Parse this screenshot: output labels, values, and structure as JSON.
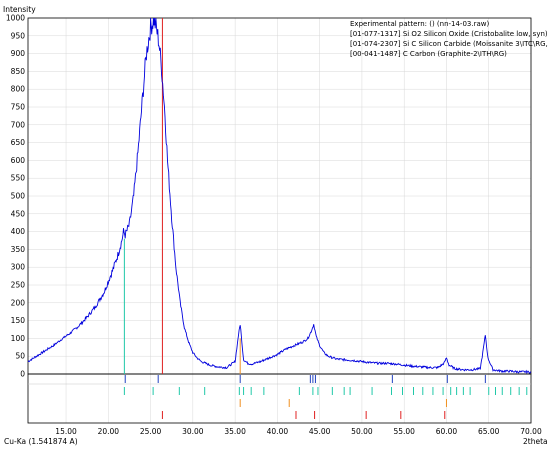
{
  "chart_data": {
    "type": "line",
    "ylabel": "Intensity",
    "xlabel": "2theta",
    "wavelength_label": "Cu-Ka (1.541874 A)",
    "xlim": [
      10.5,
      70.0
    ],
    "ylim": [
      0,
      1000
    ],
    "x_ticks": [
      15.0,
      20.0,
      25.0,
      30.0,
      35.0,
      40.0,
      45.0,
      50.0,
      55.0,
      60.0,
      65.0,
      70.0
    ],
    "x_tick_labels": [
      "15.00",
      "20.00",
      "25.00",
      "30.00",
      "35.00",
      "40.00",
      "45.00",
      "50.00",
      "55.00",
      "60.00",
      "65.00",
      "70.00"
    ],
    "y_ticks": [
      0,
      50,
      100,
      150,
      200,
      250,
      300,
      350,
      400,
      450,
      500,
      550,
      600,
      650,
      700,
      750,
      800,
      850,
      900,
      950,
      1000
    ],
    "y_tick_labels": [
      "0",
      "50",
      "100",
      "150",
      "200",
      "250",
      "300",
      "350",
      "400",
      "450",
      "500",
      "550",
      "600",
      "650",
      "700",
      "750",
      "800",
      "850",
      "900",
      "950",
      "1000"
    ],
    "legend_position": "top-right",
    "series": [
      {
        "name": "Experimental pattern:  () (nn-14-03.raw)",
        "color": "#0000dd",
        "x": [
          10.5,
          11.5,
          12.5,
          13.5,
          14.5,
          15.5,
          16.5,
          17.5,
          18.5,
          19.5,
          20.5,
          21.2,
          21.6,
          21.8,
          22.0,
          22.5,
          23.0,
          23.5,
          24.0,
          24.5,
          25.0,
          25.4,
          25.7,
          26.0,
          26.3,
          26.7,
          27.0,
          27.5,
          28.0,
          28.5,
          29.0,
          29.5,
          30.0,
          30.5,
          31.0,
          32.0,
          33.0,
          34.0,
          35.0,
          35.4,
          35.6,
          35.8,
          36.0,
          36.5,
          37.0,
          38.0,
          39.0,
          40.0,
          41.0,
          42.0,
          43.0,
          43.6,
          44.0,
          44.3,
          44.6,
          45.0,
          45.5,
          46.0,
          47.0,
          48.0,
          49.0,
          50.0,
          51.0,
          52.0,
          53.0,
          54.0,
          55.0,
          56.0,
          57.0,
          58.0,
          59.0,
          59.7,
          60.0,
          60.3,
          61.0,
          62.0,
          63.0,
          64.0,
          64.3,
          64.6,
          64.9,
          65.5,
          66.5,
          67.5,
          68.5,
          69.5,
          70.0
        ],
        "y": [
          35,
          50,
          65,
          80,
          98,
          115,
          135,
          160,
          190,
          230,
          290,
          340,
          375,
          400,
          390,
          420,
          500,
          620,
          760,
          900,
          975,
          995,
          970,
          930,
          860,
          730,
          600,
          440,
          300,
          200,
          130,
          90,
          60,
          45,
          35,
          25,
          20,
          18,
          35,
          110,
          140,
          90,
          40,
          30,
          28,
          35,
          45,
          55,
          70,
          80,
          90,
          100,
          120,
          140,
          105,
          80,
          60,
          50,
          42,
          40,
          38,
          35,
          32,
          30,
          30,
          28,
          25,
          22,
          20,
          18,
          18,
          30,
          45,
          25,
          15,
          12,
          12,
          15,
          60,
          110,
          45,
          12,
          8,
          8,
          6,
          6,
          5
        ]
      }
    ],
    "reference_patterns": [
      {
        "name": "[01-077-1317] Si O2 Silicon Oxide (Cristobalite low, syn)",
        "color": "#20c8a8",
        "main_peak": {
          "x": 21.9,
          "y": 380
        },
        "sticks": [
          21.9,
          25.3,
          28.4,
          31.4,
          35.5,
          36.0,
          36.9,
          38.4,
          42.6,
          44.2,
          44.8,
          46.5,
          47.9,
          48.6,
          51.2,
          53.5,
          54.8,
          56.1,
          57.2,
          58.4,
          59.6,
          60.5,
          61.2,
          62.0,
          62.8,
          65.0,
          65.8,
          66.6,
          67.6,
          68.6,
          69.5
        ]
      },
      {
        "name": "[01-074-2307] Si C Silicon Carbide (Moissanite 3\\ITC\\RG, syn)",
        "color": "#f09020",
        "main_peak": {
          "x": 35.6,
          "y": 100
        },
        "sticks": [
          35.6,
          41.4,
          60.0
        ]
      },
      {
        "name": "[00-041-1487] C Carbon (Graphite-2\\ITH\\RG)",
        "color": "#e02020",
        "main_peak": {
          "x": 26.4,
          "y": 1000
        },
        "sticks": [
          26.4,
          42.2,
          44.4,
          50.5,
          54.6,
          59.8
        ]
      }
    ],
    "peak_markers": [
      22.0,
      25.9,
      35.6,
      43.9,
      44.2,
      44.5,
      53.6,
      60.1,
      64.6
    ]
  }
}
